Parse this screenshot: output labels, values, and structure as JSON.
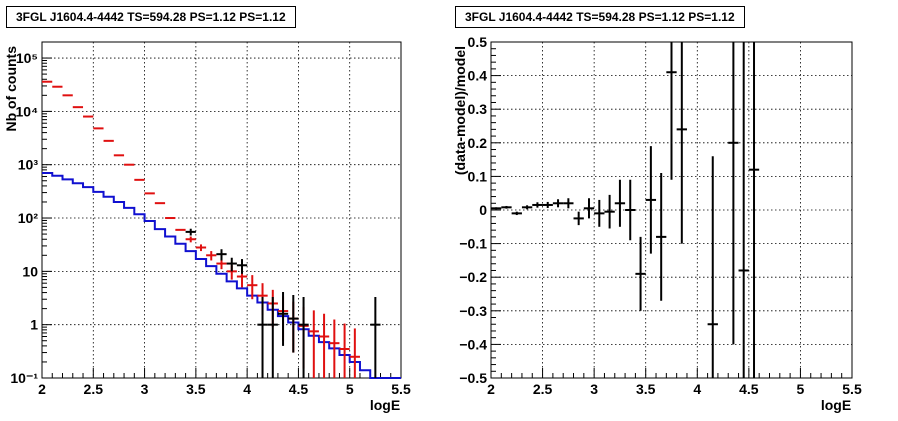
{
  "chart_data": [
    {
      "type": "scatter",
      "title": "3FGL J1604.4-4442 TS=594.28 PS=1.12 PS=1.12",
      "xlabel": "logE",
      "ylabel": "Nb of counts",
      "xlim": [
        2,
        5.5
      ],
      "ylim": [
        0.1,
        200000
      ],
      "yscale": "log",
      "grid": true,
      "x_ticks": [
        "2",
        "2.5",
        "3",
        "3.5",
        "4",
        "4.5",
        "5",
        "5.5"
      ],
      "y_ticks": [
        "10⁻¹",
        "1",
        "10",
        "10²",
        "10³",
        "10⁴",
        "10⁵"
      ],
      "y_tick_values": [
        0.1,
        1,
        10,
        100,
        1000,
        10000,
        100000
      ],
      "series": [
        {
          "kind": "step",
          "color": "#1010d0",
          "bin_edges": [
            2.0,
            2.1,
            2.2,
            2.3,
            2.4,
            2.5,
            2.6,
            2.7,
            2.8,
            2.9,
            3.0,
            3.1,
            3.2,
            3.3,
            3.4,
            3.5,
            3.6,
            3.7,
            3.8,
            3.9,
            4.0,
            4.1,
            4.2,
            4.3,
            4.4,
            4.5,
            4.6,
            4.7,
            4.8,
            4.9,
            5.0,
            5.1,
            5.2,
            5.3,
            5.4,
            5.5
          ],
          "values": [
            700,
            620,
            530,
            450,
            380,
            310,
            250,
            200,
            155,
            118,
            88,
            62,
            45,
            33,
            24,
            17,
            12.5,
            9,
            6.5,
            4.8,
            3.5,
            2.6,
            1.9,
            1.45,
            1.1,
            0.82,
            0.62,
            0.47,
            0.36,
            0.27,
            0.2,
            0.14,
            0.1,
            0.1,
            0.1
          ]
        },
        {
          "kind": "points",
          "color": "#e01010",
          "x": [
            2.05,
            2.15,
            2.25,
            2.35,
            2.45,
            2.55,
            2.65,
            2.75,
            2.85,
            2.95,
            3.05,
            3.15,
            3.25,
            3.35,
            3.45,
            3.55,
            3.65,
            3.75,
            3.85,
            3.95,
            4.05,
            4.15,
            4.25,
            4.35,
            4.45,
            4.55,
            4.65,
            4.75,
            4.85,
            4.95,
            5.05
          ],
          "y": [
            36000,
            29000,
            20000,
            12000,
            8000,
            4800,
            2800,
            1500,
            1000,
            520,
            290,
            190,
            100,
            60,
            40,
            28,
            20,
            14,
            10,
            8,
            5.5,
            3.5,
            2.5,
            1.8,
            1.3,
            0.95,
            0.75,
            0.6,
            0.45,
            0.35,
            0.25
          ],
          "err_lo": [
            0,
            0,
            0,
            0,
            0,
            0,
            0,
            0,
            0,
            0,
            0,
            0,
            0,
            0,
            5,
            4,
            4,
            3,
            3,
            3,
            2.5,
            2,
            1.6,
            1.3,
            1,
            0.8,
            0.7,
            0.6,
            0.45,
            0.35,
            0.25
          ],
          "err_hi": [
            0,
            0,
            0,
            0,
            0,
            0,
            0,
            0,
            0,
            0,
            0,
            0,
            0,
            0,
            5,
            4,
            4,
            3,
            3,
            3,
            3,
            2.5,
            2,
            1.6,
            1.4,
            1.2,
            1.1,
            1,
            0.8,
            0.7,
            0.6
          ]
        },
        {
          "kind": "points",
          "color": "#000000",
          "x": [
            3.45,
            3.75,
            3.85,
            3.95,
            4.15,
            4.25,
            4.35,
            4.45,
            4.55,
            5.25
          ],
          "y": [
            55,
            21,
            14,
            13,
            1,
            1,
            1.6,
            1.3,
            1,
            1
          ],
          "err_lo": [
            8,
            5,
            4,
            4,
            0.9,
            0.9,
            1.2,
            1.0,
            0.9,
            0.9
          ],
          "err_hi": [
            8,
            5,
            4,
            4,
            2.3,
            2.3,
            2.5,
            2.3,
            2.3,
            2.3
          ]
        }
      ]
    },
    {
      "type": "scatter",
      "title": "3FGL J1604.4-4442 TS=594.28 PS=1.12 PS=1.12",
      "xlabel": "logE",
      "ylabel": "(data-model)/model",
      "xlim": [
        2,
        5.5
      ],
      "ylim": [
        -0.5,
        0.5
      ],
      "grid": true,
      "x_ticks": [
        "2",
        "2.5",
        "3",
        "3.5",
        "4",
        "4.5",
        "5",
        "5.5"
      ],
      "y_ticks": [
        "−0.5",
        "−0.4",
        "−0.3",
        "−0.2",
        "−0.1",
        "0",
        "0.1",
        "0.2",
        "0.3",
        "0.4",
        "0.5"
      ],
      "y_tick_values": [
        -0.5,
        -0.4,
        -0.3,
        -0.2,
        -0.1,
        0,
        0.1,
        0.2,
        0.3,
        0.4,
        0.5
      ],
      "series": [
        {
          "kind": "points",
          "color": "#000000",
          "x": [
            2.05,
            2.15,
            2.25,
            2.35,
            2.45,
            2.55,
            2.65,
            2.75,
            2.85,
            2.95,
            3.05,
            3.15,
            3.25,
            3.35,
            3.45,
            3.55,
            3.65,
            3.75,
            3.85,
            4.15,
            4.35,
            4.45,
            4.55
          ],
          "y": [
            0.005,
            0.008,
            -0.01,
            0.008,
            0.015,
            0.015,
            0.02,
            0.02,
            -0.025,
            0.005,
            -0.01,
            -0.005,
            0.02,
            0.0,
            -0.19,
            0.03,
            -0.08,
            0.41,
            0.24,
            -0.34,
            0.2,
            -0.18,
            0.12
          ],
          "err": [
            0.003,
            0.004,
            0.005,
            0.006,
            0.008,
            0.009,
            0.012,
            0.015,
            0.02,
            0.03,
            0.04,
            0.05,
            0.07,
            0.09,
            0.11,
            0.16,
            0.19,
            0.32,
            0.34,
            0.5,
            0.6,
            0.7,
            0.8
          ]
        }
      ]
    }
  ]
}
